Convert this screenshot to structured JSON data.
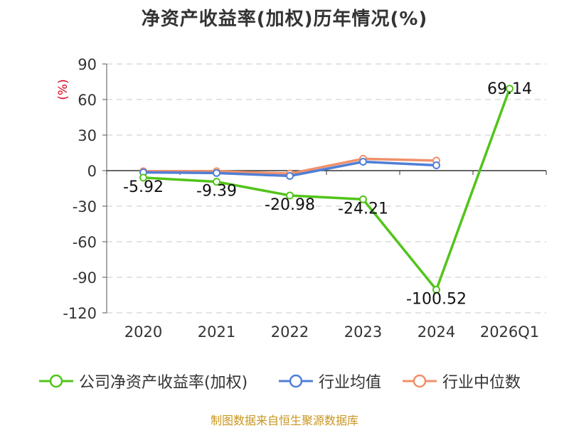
{
  "chart_data": {
    "type": "line",
    "title": "净资产收益率(加权)历年情况(%)",
    "ylabel": "(%)",
    "categories": [
      "2020",
      "2021",
      "2022",
      "2023",
      "2024",
      "2026Q1"
    ],
    "ylim": [
      -120,
      90
    ],
    "yticks": [
      90,
      60,
      30,
      0,
      -30,
      -60,
      -90,
      -120
    ],
    "grid": true,
    "legend_position": "bottom",
    "series": [
      {
        "name": "公司净资产收益率(加权)",
        "color": "#52c41a",
        "values": [
          -5.92,
          -9.39,
          -20.98,
          -24.21,
          -100.52,
          69.14
        ],
        "labels": [
          "-5.92",
          "-9.39",
          "-20.98",
          "-24.21",
          "-100.52",
          "69.14"
        ]
      },
      {
        "name": "行业均值",
        "color": "#4f7fd6",
        "values": [
          -1.5,
          -2.0,
          -4.5,
          7.5,
          4.5,
          null
        ]
      },
      {
        "name": "行业中位数",
        "color": "#f0906a",
        "values": [
          -0.5,
          -0.5,
          -2.5,
          10.0,
          8.5,
          null
        ]
      }
    ]
  },
  "footer": {
    "source": "制图数据来自恒生聚源数据库"
  }
}
